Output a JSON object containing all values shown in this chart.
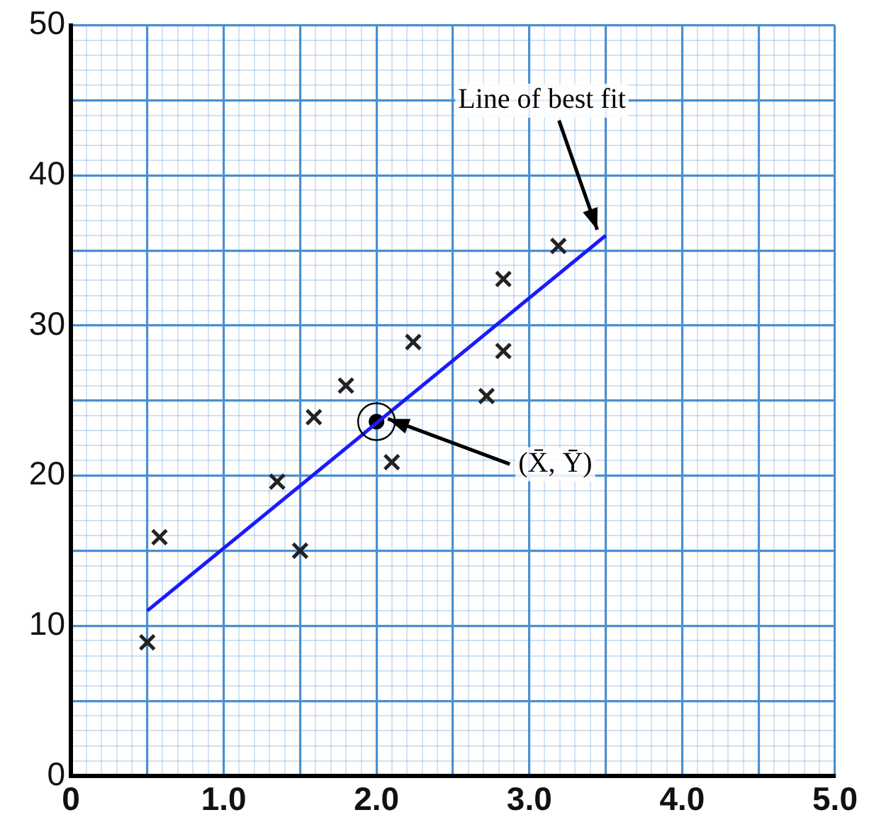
{
  "chart_data": {
    "type": "scatter",
    "marker": "cross",
    "grid": true,
    "legend": false,
    "xlim": [
      0,
      5
    ],
    "ylim": [
      0,
      50
    ],
    "xticks": [
      0,
      {
        "value": 0.1,
        "label": null
      },
      {
        "value": 0.2,
        "label": null
      },
      {
        "value": 0.3,
        "label": null
      },
      {
        "value": 0.4,
        "label": null
      },
      {
        "value": 0.5,
        "label": null
      },
      {
        "value": 0.6,
        "label": null
      },
      {
        "value": 0.7,
        "label": null
      },
      {
        "value": 0.8,
        "label": null
      },
      {
        "value": 0.9,
        "label": null
      },
      {
        "value": 1,
        "label": "1.0"
      },
      {
        "value": 1.1,
        "label": null
      },
      {
        "value": 1.2,
        "label": null
      },
      {
        "value": 1.3,
        "label": null
      },
      {
        "value": 1.4,
        "label": null
      },
      {
        "value": 1.5,
        "label": null
      },
      {
        "value": 1.6,
        "label": null
      },
      {
        "value": 1.7,
        "label": null
      },
      {
        "value": 1.8,
        "label": null
      },
      {
        "value": 1.9,
        "label": null
      },
      {
        "value": 2,
        "label": "2.0"
      },
      {
        "value": 2.1,
        "label": null
      },
      {
        "value": 2.2,
        "label": null
      },
      {
        "value": 2.3,
        "label": null
      },
      {
        "value": 2.4,
        "label": null
      },
      {
        "value": 2.5,
        "label": null
      },
      {
        "value": 2.6,
        "label": null
      },
      {
        "value": 2.7,
        "label": null
      },
      {
        "value": 2.8,
        "label": null
      },
      {
        "value": 2.9,
        "label": null
      },
      {
        "value": 3,
        "label": "3.0"
      },
      {
        "value": 3.1,
        "label": null
      },
      {
        "value": 3.2,
        "label": null
      },
      {
        "value": 3.3,
        "label": null
      },
      {
        "value": 3.4,
        "label": null
      },
      {
        "value": 3.5,
        "label": null
      },
      {
        "value": 3.6,
        "label": null
      },
      {
        "value": 3.7,
        "label": null
      },
      {
        "value": 3.8,
        "label": null
      },
      {
        "value": 3.9,
        "label": null
      },
      {
        "value": 4,
        "label": "4.0"
      },
      {
        "value": 4.1,
        "label": null
      },
      {
        "value": 4.2,
        "label": null
      },
      {
        "value": 4.3,
        "label": null
      },
      {
        "value": 4.4,
        "label": null
      },
      {
        "value": 4.5,
        "label": null
      },
      {
        "value": 4.6,
        "label": null
      },
      {
        "value": 4.7,
        "label": null
      },
      {
        "value": 4.8,
        "label": null
      },
      {
        "value": 4.9,
        "label": null
      },
      {
        "value": 5,
        "label": "5.0"
      }
    ],
    "yticks": [
      0,
      {
        "value": 1,
        "label": null
      },
      {
        "value": 2,
        "label": null
      },
      {
        "value": 3,
        "label": null
      },
      {
        "value": 4,
        "label": null
      },
      {
        "value": 5,
        "label": null
      },
      {
        "value": 6,
        "label": null
      },
      {
        "value": 7,
        "label": null
      },
      {
        "value": 8,
        "label": null
      },
      {
        "value": 9,
        "label": null
      },
      10,
      {
        "value": 11,
        "label": null
      },
      {
        "value": 12,
        "label": null
      },
      {
        "value": 13,
        "label": null
      },
      {
        "value": 14,
        "label": null
      },
      {
        "value": 15,
        "label": null
      },
      {
        "value": 16,
        "label": null
      },
      {
        "value": 17,
        "label": null
      },
      {
        "value": 18,
        "label": null
      },
      {
        "value": 19,
        "label": null
      },
      20,
      {
        "value": 21,
        "label": null
      },
      {
        "value": 22,
        "label": null
      },
      {
        "value": 23,
        "label": null
      },
      {
        "value": 24,
        "label": null
      },
      {
        "value": 25,
        "label": null
      },
      {
        "value": 26,
        "label": null
      },
      {
        "value": 27,
        "label": null
      },
      {
        "value": 28,
        "label": null
      },
      {
        "value": 29,
        "label": null
      },
      30,
      {
        "value": 31,
        "label": null
      },
      {
        "value": 32,
        "label": null
      },
      {
        "value": 33,
        "label": null
      },
      {
        "value": 34,
        "label": null
      },
      {
        "value": 35,
        "label": null
      },
      {
        "value": 36,
        "label": null
      },
      {
        "value": 37,
        "label": null
      },
      {
        "value": 38,
        "label": null
      },
      {
        "value": 39,
        "label": null
      },
      40,
      {
        "value": 41,
        "label": null
      },
      {
        "value": 42,
        "label": null
      },
      {
        "value": 43,
        "label": null
      },
      {
        "value": 44,
        "label": null
      },
      {
        "value": 45,
        "label": null
      },
      {
        "value": 46,
        "label": null
      },
      {
        "value": 47,
        "label": null
      },
      {
        "value": 48,
        "label": null
      },
      {
        "value": 49,
        "label": null
      },
      50
    ],
    "series": [
      {
        "type": "scatter",
        "color": "#222222",
        "x": [
          0.5,
          0.58,
          1.35,
          1.5,
          1.59,
          1.8,
          2.1,
          2.24,
          2.72,
          2.83,
          2.83,
          3.19
        ],
        "values": [
          8.9,
          15.9,
          19.6,
          15.0,
          23.9,
          26.0,
          20.9,
          28.9,
          25.3,
          33.1,
          28.3,
          35.3
        ]
      },
      {
        "type": "line",
        "marker": "none",
        "color": "#1a1aff",
        "x": [
          0.5,
          3.5
        ],
        "values": [
          11.0,
          36.0
        ]
      },
      {
        "type": "scatter",
        "marker": "circle",
        "color": "#000000",
        "x": [
          2.0
        ],
        "values": [
          23.6
        ]
      }
    ],
    "annotations": [
      {
        "text": "Line of best fit",
        "x": 3.5,
        "y": 36.0
      },
      {
        "text": "(X̄, Ȳ)",
        "x": 2.0,
        "y": 23.6
      }
    ]
  }
}
